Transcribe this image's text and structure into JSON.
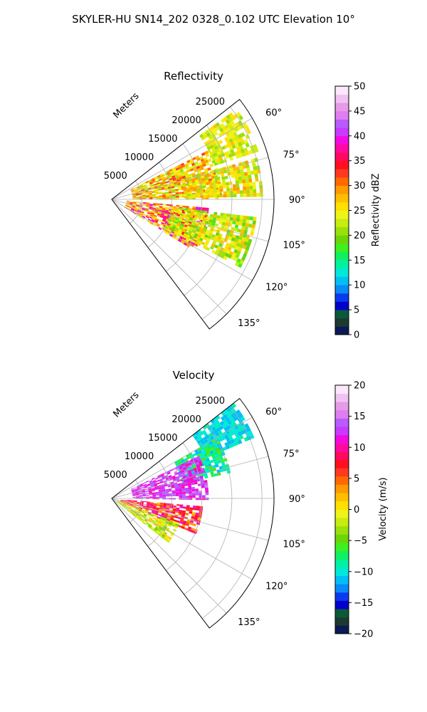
{
  "figure": {
    "suptitle": "SKYLER-HU  SN14_202  0328_0.102 UTC Elevation 10°"
  },
  "chart_data": [
    {
      "type": "heatmap",
      "projection": "polar sector",
      "title": "Reflectivity",
      "radial_axis_label": "Meters",
      "radial_ticks": [
        5000,
        10000,
        15000,
        20000,
        25000
      ],
      "radial_tick_labels": [
        "5000",
        "10000",
        "15000",
        "20000",
        "25000"
      ],
      "radial_limit": [
        0,
        27000
      ],
      "azimuth_range_deg": [
        52,
        143
      ],
      "azimuth_ticks_deg": [
        60,
        75,
        90,
        105,
        120,
        135
      ],
      "azimuth_tick_labels": [
        "60°",
        "75°",
        "90°",
        "105°",
        "120°",
        "135°"
      ],
      "grid": true,
      "colorbar": {
        "label": "Reflectivity dBZ",
        "range": [
          0,
          50
        ],
        "ticks": [
          0,
          5,
          10,
          15,
          20,
          25,
          30,
          35,
          40,
          45,
          50
        ],
        "tick_labels": [
          "0",
          "5",
          "10",
          "15",
          "20",
          "25",
          "30",
          "35",
          "40",
          "45",
          "50"
        ],
        "colors": [
          "#0a1a55",
          "#1e3a30",
          "#0a5a3a",
          "#0000cc",
          "#0a3af0",
          "#0a8af5",
          "#00bff5",
          "#00e8d8",
          "#00f2a0",
          "#10f060",
          "#3ff020",
          "#6ed40a",
          "#9ae00a",
          "#c8ec10",
          "#eef41a",
          "#ffe000",
          "#ffbf00",
          "#ff9a00",
          "#ff6a00",
          "#ff3a20",
          "#ff1020",
          "#ff0a60",
          "#ff0aa0",
          "#f20ae0",
          "#c83aff",
          "#b85cff",
          "#de7ef0",
          "#e69ae8",
          "#f0c2f2",
          "#fbe8fb"
        ]
      },
      "precipitation_regions": [
        {
          "az": [
            54,
            72
          ],
          "r": [
            18000,
            25500
          ],
          "value_range": [
            20,
            27
          ]
        },
        {
          "az": [
            63,
            90
          ],
          "r": [
            3500,
            18000
          ],
          "value_range": [
            20,
            33
          ]
        },
        {
          "az": [
            74,
            88
          ],
          "r": [
            12000,
            25000
          ],
          "value_range": [
            20,
            30
          ]
        },
        {
          "az": [
            95,
            122
          ],
          "r": [
            2500,
            16000
          ],
          "value_range": [
            22,
            40
          ]
        },
        {
          "az": [
            97,
            118
          ],
          "r": [
            10000,
            24000
          ],
          "value_range": [
            18,
            28
          ]
        }
      ]
    },
    {
      "type": "heatmap",
      "projection": "polar sector",
      "title": "Velocity",
      "radial_axis_label": "Meters",
      "radial_ticks": [
        5000,
        10000,
        15000,
        20000,
        25000
      ],
      "radial_tick_labels": [
        "5000",
        "10000",
        "15000",
        "20000",
        "25000"
      ],
      "radial_limit": [
        0,
        27000
      ],
      "azimuth_range_deg": [
        52,
        143
      ],
      "azimuth_ticks_deg": [
        60,
        75,
        90,
        105,
        120,
        135
      ],
      "azimuth_tick_labels": [
        "60°",
        "75°",
        "90°",
        "105°",
        "120°",
        "135°"
      ],
      "grid": true,
      "colorbar": {
        "label": "Velocity (m/s)",
        "range": [
          -20,
          20
        ],
        "ticks": [
          -20,
          -15,
          -10,
          -5,
          0,
          5,
          10,
          15,
          20
        ],
        "tick_labels": [
          "−20",
          "−15",
          "−10",
          "−5",
          "0",
          "5",
          "10",
          "15",
          "20"
        ],
        "colors": [
          "#0a1a55",
          "#1e3a30",
          "#0a5a3a",
          "#0000cc",
          "#0a3af0",
          "#0a8af5",
          "#00bff5",
          "#00e8d8",
          "#00f2a0",
          "#10f060",
          "#3ff020",
          "#6ed40a",
          "#9ae00a",
          "#c8ec10",
          "#eef41a",
          "#ffe000",
          "#ffbf00",
          "#ff9a00",
          "#ff6a00",
          "#ff3a20",
          "#ff1020",
          "#ff0a60",
          "#ff0aa0",
          "#f20ae0",
          "#c83aff",
          "#b85cff",
          "#de7ef0",
          "#e69ae8",
          "#f0c2f2",
          "#fbe8fb"
        ]
      },
      "precipitation_regions": [
        {
          "az": [
            52,
            66
          ],
          "r": [
            17000,
            25500
          ],
          "value_range": [
            -12,
            -9
          ]
        },
        {
          "az": [
            60,
            78
          ],
          "r": [
            12000,
            20000
          ],
          "value_range": [
            -12,
            -5
          ]
        },
        {
          "az": [
            64,
            90
          ],
          "r": [
            3500,
            16000
          ],
          "value_range": [
            10,
            15
          ]
        },
        {
          "az": [
            95,
            112
          ],
          "r": [
            1500,
            15000
          ],
          "value_range": [
            2,
            12
          ]
        },
        {
          "az": [
            110,
            128
          ],
          "r": [
            1000,
            12000
          ],
          "value_range": [
            -5,
            2
          ]
        }
      ]
    }
  ]
}
